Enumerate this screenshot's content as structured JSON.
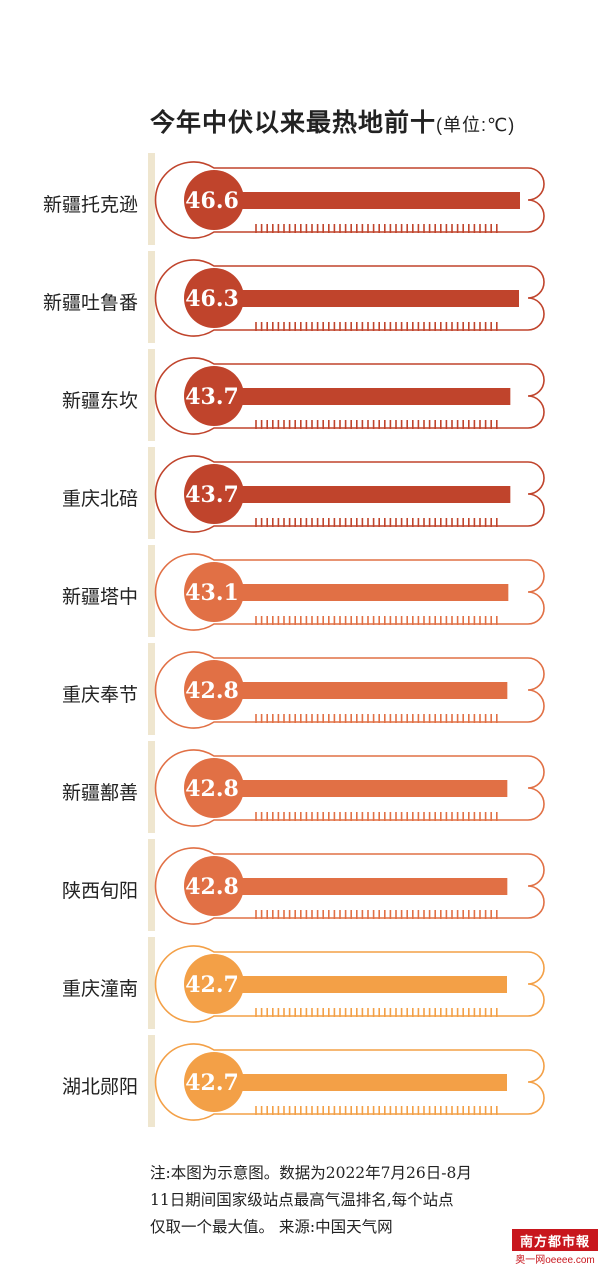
{
  "header": {
    "title": "今年中伏以来最热地前十",
    "unit": "(单位:℃)"
  },
  "chart_data": {
    "type": "bar",
    "title": "今年中伏以来最热地前十",
    "unit": "(单位:℃)",
    "categories": [
      "新疆托克逊",
      "新疆吐鲁番",
      "新疆东坎",
      "重庆北碚",
      "新疆塔中",
      "重庆奉节",
      "新疆鄯善",
      "陕西旬阳",
      "重庆潼南",
      "湖北郧阳"
    ],
    "values": [
      46.6,
      46.3,
      43.7,
      43.7,
      43.1,
      42.8,
      42.8,
      42.8,
      42.7,
      42.7
    ],
    "value_labels": [
      "46.6",
      "46.3",
      "43.7",
      "43.7",
      "43.1",
      "42.8",
      "42.8",
      "42.8",
      "42.7",
      "42.7"
    ],
    "colors": [
      "#c0442c",
      "#c0442c",
      "#c0442c",
      "#c0442c",
      "#e17045",
      "#e17045",
      "#e17045",
      "#e17045",
      "#f3a047",
      "#f3a047"
    ],
    "legend": "none",
    "grid": false
  },
  "footer": {
    "note_line1": "注:本图为示意图。数据为2022年7月26日-8月",
    "note_line2": "11日期间国家级站点最高气温排名,每个站点",
    "note_line3": "仅取一个最大值。 来源:中国天气网",
    "logo_text": "南方都市報",
    "logo_sub": "奥一网oeeee.com"
  }
}
